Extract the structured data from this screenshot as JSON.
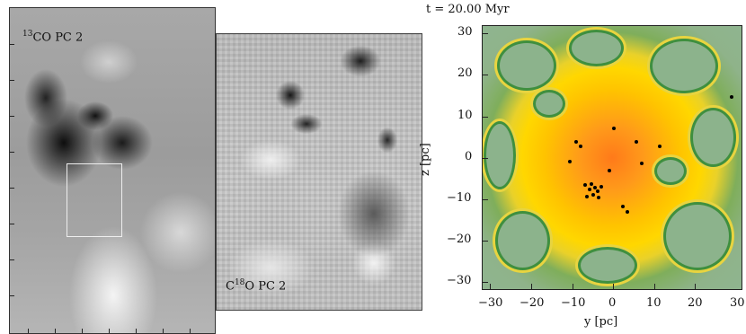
{
  "left_panel": {
    "label_sup": "13",
    "label_text": "CO PC 2"
  },
  "middle_panel": {
    "label_prefix": "C",
    "label_sup": "18",
    "label_text": "O PC 2"
  },
  "sim": {
    "title": "t = 20.00 Myr",
    "xlabel": "y [pc]",
    "ylabel": "z [pc]",
    "x_ticks": [
      "−30",
      "−20",
      "−10",
      "0",
      "10",
      "20",
      "30"
    ],
    "y_ticks": [
      "30",
      "20",
      "10",
      "0",
      "−10",
      "−20",
      "−30"
    ]
  },
  "colors": {
    "void": "#8cb38c",
    "filament_dark": "#3f8f3f",
    "filament_hot": "#ff7a1a",
    "filament_warm": "#ffd700"
  }
}
